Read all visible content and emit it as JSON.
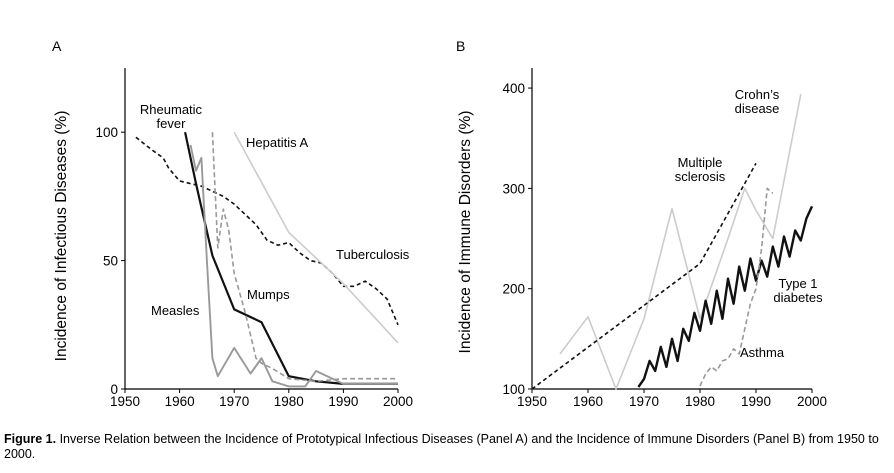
{
  "caption": {
    "label": "Figure 1.",
    "text": "Inverse Relation between the Incidence of Prototypical Infectious Diseases (Panel A) and the Incidence of Immune Disorders (Panel B) from 1950 to 2000."
  },
  "chart_data": [
    {
      "type": "line",
      "panel": "A",
      "title": "",
      "ylabel": "Incidence of Infectious Diseases (%)",
      "xlabel": "",
      "xlim": [
        1950,
        2000
      ],
      "ylim": [
        0,
        125
      ],
      "xticks": [
        1950,
        1960,
        1970,
        1980,
        1990,
        2000
      ],
      "yticks": [
        0,
        50,
        100
      ],
      "series": [
        {
          "name": "Tuberculosis",
          "label": "Tuberculosis",
          "color": "#111111",
          "dash": "4,3",
          "width": 1.6,
          "x": [
            1952,
            1955,
            1957,
            1958,
            1960,
            1962,
            1964,
            1966,
            1968,
            1970,
            1972,
            1974,
            1976,
            1978,
            1980,
            1982,
            1984,
            1986,
            1988,
            1990,
            1992,
            1994,
            1996,
            1998,
            2000
          ],
          "y": [
            98,
            93,
            90,
            86,
            81,
            80,
            79,
            77,
            75,
            72,
            68,
            64,
            58,
            56,
            57,
            53,
            50,
            49,
            45,
            40,
            40,
            42,
            39,
            35,
            25
          ]
        },
        {
          "name": "Rheumatic fever",
          "label": "Rheumatic fever",
          "color": "#111111",
          "dash": "",
          "width": 2.2,
          "x": [
            1961,
            1963,
            1966,
            1970,
            1975,
            1980,
            1985,
            1990,
            1995,
            2000
          ],
          "y": [
            100,
            80,
            52,
            31,
            26,
            5,
            3,
            2,
            2,
            2
          ]
        },
        {
          "name": "Hepatitis A",
          "label": "Hepatitis A",
          "color": "#cccccc",
          "dash": "",
          "width": 1.6,
          "x": [
            1970,
            1980,
            1990,
            2000
          ],
          "y": [
            100,
            61,
            41,
            18
          ]
        },
        {
          "name": "Mumps",
          "label": "Mumps",
          "color": "#999999",
          "dash": "5,3",
          "width": 1.6,
          "x": [
            1966,
            1967,
            1968,
            1969,
            1970,
            1972,
            1974,
            1975,
            1977,
            1980,
            1985,
            1990,
            2000
          ],
          "y": [
            100,
            55,
            70,
            62,
            45,
            30,
            12,
            10,
            8,
            4,
            3,
            4,
            4
          ]
        },
        {
          "name": "Measles",
          "label": "Measles",
          "color": "#999999",
          "dash": "",
          "width": 1.9,
          "x": [
            1962,
            1963,
            1964,
            1965,
            1966,
            1967,
            1970,
            1973,
            1975,
            1977,
            1980,
            1983,
            1985,
            1990,
            2000
          ],
          "y": [
            95,
            85,
            90,
            50,
            12,
            5,
            16,
            6,
            12,
            3,
            1,
            1,
            7,
            2,
            2
          ]
        }
      ]
    },
    {
      "type": "line",
      "panel": "B",
      "title": "",
      "ylabel": "Incidence of Immune Disorders (%)",
      "xlabel": "",
      "xlim": [
        1950,
        2000
      ],
      "ylim": [
        100,
        420
      ],
      "xticks": [
        1950,
        1960,
        1970,
        1980,
        1990,
        2000
      ],
      "yticks": [
        100,
        200,
        300,
        400
      ],
      "series": [
        {
          "name": "Crohn's disease",
          "label": "Crohn’s disease",
          "color": "#cccccc",
          "dash": "",
          "width": 1.6,
          "x": [
            1955,
            1960,
            1965,
            1970,
            1975,
            1980,
            1985,
            1988,
            1990,
            1993,
            1998
          ],
          "y": [
            135,
            172,
            100,
            170,
            280,
            170,
            250,
            300,
            278,
            250,
            394
          ]
        },
        {
          "name": "Multiple sclerosis",
          "label": "Multiple sclerosis",
          "color": "#111111",
          "dash": "4,3",
          "width": 1.6,
          "x": [
            1950,
            1980,
            1990
          ],
          "y": [
            100,
            225,
            325
          ]
        },
        {
          "name": "Type 1 diabetes",
          "label": "Type 1 diabetes",
          "color": "#111111",
          "dash": "",
          "width": 2.4,
          "x": [
            1969,
            1970,
            1971,
            1972,
            1973,
            1974,
            1975,
            1976,
            1977,
            1978,
            1979,
            1980,
            1981,
            1982,
            1983,
            1984,
            1985,
            1986,
            1987,
            1988,
            1989,
            1990,
            1991,
            1992,
            1993,
            1994,
            1995,
            1996,
            1997,
            1998,
            1999,
            2000
          ],
          "y": [
            102,
            110,
            128,
            118,
            142,
            122,
            150,
            128,
            160,
            148,
            176,
            158,
            188,
            165,
            198,
            170,
            210,
            185,
            222,
            198,
            230,
            208,
            228,
            212,
            242,
            222,
            252,
            232,
            258,
            248,
            270,
            282
          ]
        },
        {
          "name": "Asthma",
          "label": "Asthma",
          "color": "#999999",
          "dash": "5,3",
          "width": 1.6,
          "x": [
            1980,
            1981,
            1982,
            1983,
            1984,
            1985,
            1986,
            1987,
            1988,
            1989,
            1990,
            1991,
            1992,
            1993
          ],
          "y": [
            103,
            115,
            122,
            118,
            128,
            130,
            140,
            135,
            160,
            185,
            200,
            240,
            300,
            295
          ]
        }
      ]
    }
  ]
}
